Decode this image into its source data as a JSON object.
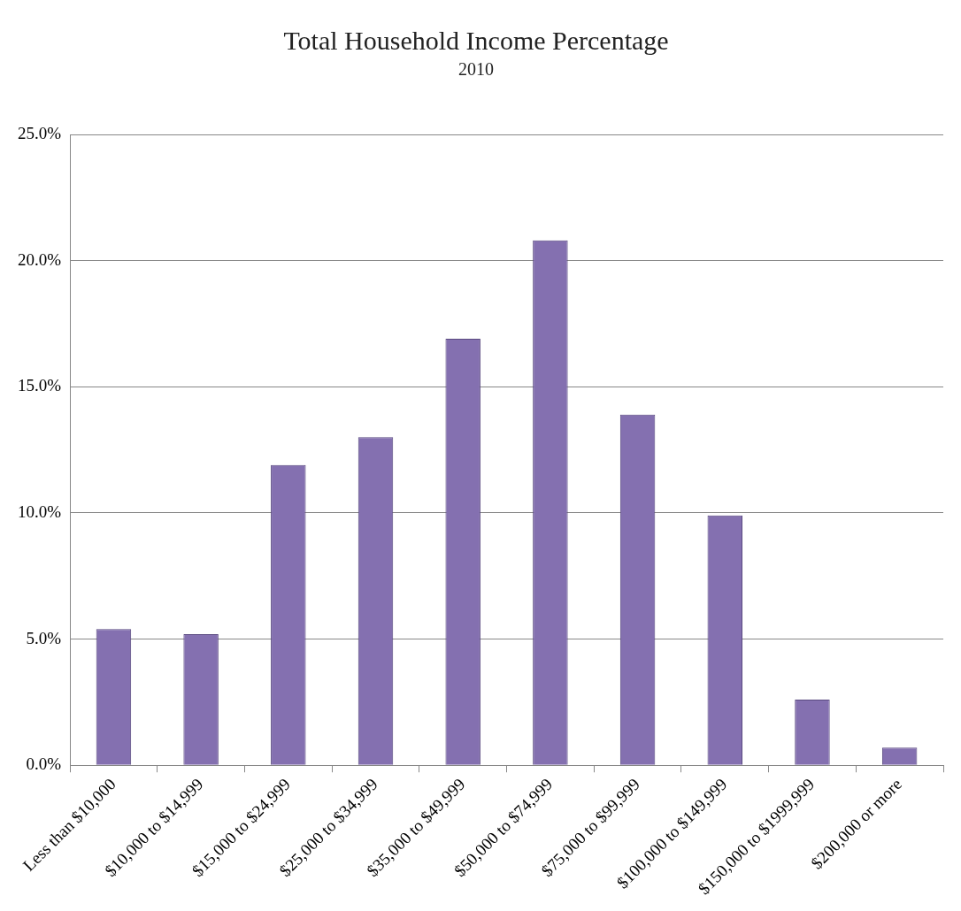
{
  "chart_data": {
    "type": "bar",
    "title": "Total Household Income Percentage",
    "subtitle": "2010",
    "categories": [
      "Less than $10,000",
      "$10,000 to $14,999",
      "$15,000 to $24,999",
      "$25,000 to $34,999",
      "$35,000 to $49,999",
      "$50,000 to $74,999",
      "$75,000 to $99,999",
      "$100,000 to $149,999",
      "$150,000 to $1999,999",
      "$200,000 or more"
    ],
    "values": [
      5.4,
      5.2,
      11.9,
      13.0,
      16.9,
      20.8,
      13.9,
      9.9,
      2.6,
      0.7
    ],
    "color": "#8470b0",
    "ylim": [
      0,
      25
    ],
    "yticks": [
      {
        "value": 0,
        "label": "0.0%"
      },
      {
        "value": 5,
        "label": "5.0%"
      },
      {
        "value": 10,
        "label": "10.0%"
      },
      {
        "value": 15,
        "label": "15.0%"
      },
      {
        "value": 20,
        "label": "20.0%"
      },
      {
        "value": 25,
        "label": "25.0%"
      }
    ],
    "grid": "y",
    "legend": false
  }
}
